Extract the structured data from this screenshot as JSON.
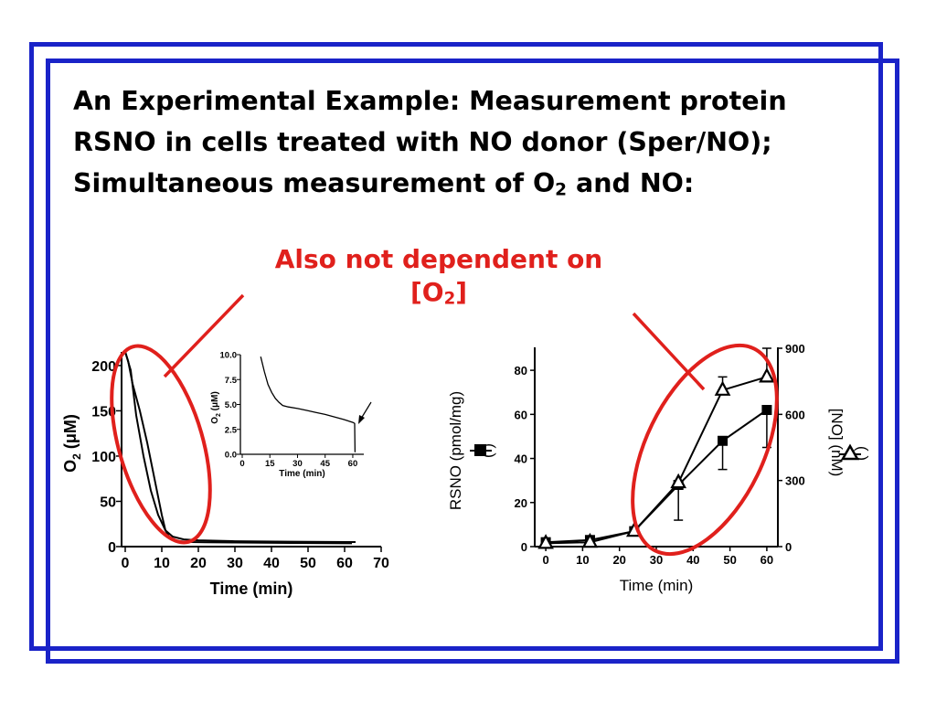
{
  "slide": {
    "title_main": "An Experimental Example: Measurement protein RSNO in cells treated with NO donor (Sper/NO); Simultaneous measurement of O",
    "title_sub": "2",
    "title_end": " and NO:",
    "callout_main": "Also not dependent on [O",
    "callout_sub": "2",
    "callout_end": "]",
    "frame_color": "#1a23c8",
    "callout_color": "#e0201c"
  },
  "chart_data": [
    {
      "id": "o2-main",
      "type": "line",
      "xlabel": "Time (min)",
      "ylabel_main": "O",
      "ylabel_sub": "2",
      "ylabel_unit": " (μM)",
      "xlim": [
        -1,
        70
      ],
      "ylim": [
        0,
        210
      ],
      "xticks": [
        0,
        10,
        20,
        30,
        40,
        50,
        60,
        70
      ],
      "yticks": [
        0,
        50,
        100,
        150,
        200
      ],
      "series": [
        {
          "x": [
            0,
            0.8,
            2,
            4,
            6,
            8,
            10,
            11,
            12,
            13,
            15,
            18,
            22,
            30,
            45,
            62
          ],
          "y": [
            215,
            205,
            180,
            150,
            115,
            75,
            35,
            18,
            11,
            8,
            6,
            5,
            4.8,
            4.5,
            4,
            3.6
          ]
        },
        {
          "x": [
            0,
            1.5,
            3,
            5,
            7,
            9,
            11,
            13,
            16,
            20,
            30,
            45,
            63
          ],
          "y": [
            215,
            195,
            145,
            100,
            62,
            35,
            18,
            11,
            8,
            7,
            6,
            5.5,
            5
          ]
        }
      ]
    },
    {
      "id": "o2-inset",
      "type": "line",
      "xlabel": "Time (min)",
      "ylabel_main": "O",
      "ylabel_sub": "2",
      "ylabel_unit": " (μM)",
      "xlim": [
        0,
        63
      ],
      "ylim": [
        0,
        10
      ],
      "xticks": [
        0,
        15,
        30,
        45,
        60
      ],
      "yticks": [
        "0.0",
        "2.5",
        "5.0",
        "7.5",
        "10.0"
      ],
      "series": [
        {
          "x": [
            10,
            12,
            14,
            16,
            18,
            20,
            22,
            25,
            30,
            35,
            40,
            45,
            50,
            55,
            60,
            61,
            61.2
          ],
          "y": [
            9.8,
            8.3,
            7.0,
            6.2,
            5.6,
            5.2,
            4.9,
            4.75,
            4.6,
            4.4,
            4.2,
            4.0,
            3.75,
            3.5,
            3.2,
            3.1,
            0.2
          ]
        }
      ]
    },
    {
      "id": "rsno-no",
      "type": "line",
      "xlabel": "Time (min)",
      "ylabel_left": "RSNO (pmol/mg)",
      "ylabel_right": "[NO] (nM)",
      "legend_paren_left": "(",
      "legend_paren_right": ")",
      "xlim": [
        -3,
        63
      ],
      "ylim_left": [
        0,
        90
      ],
      "ylim_right": [
        0,
        900
      ],
      "xticks": [
        0,
        10,
        20,
        30,
        40,
        50,
        60
      ],
      "yticks_left": [
        0,
        20,
        40,
        60,
        80
      ],
      "yticks_right": [
        0,
        300,
        600,
        900
      ],
      "series": [
        {
          "name": "RSNO",
          "marker": "square",
          "axis": "left",
          "x": [
            0,
            12,
            24,
            36,
            48,
            60
          ],
          "y": [
            2,
            3,
            7,
            28,
            48,
            62
          ],
          "err": [
            0,
            0,
            0,
            16,
            13,
            17
          ]
        },
        {
          "name": "[NO]",
          "marker": "triangle-open",
          "axis": "right",
          "x": [
            0,
            12,
            24,
            36,
            48,
            60
          ],
          "y": [
            15,
            20,
            70,
            290,
            710,
            770
          ],
          "err": [
            0,
            0,
            0,
            0,
            60,
            130
          ]
        }
      ]
    }
  ]
}
